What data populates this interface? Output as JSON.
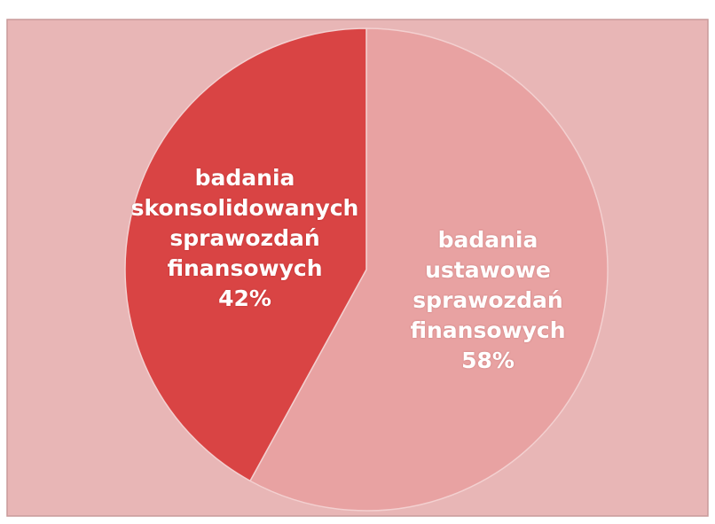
{
  "chart_data": {
    "type": "pie",
    "categories": [
      "badania ustawowe sprawozdań finansowych",
      "badania skonsolidowanych sprawozdań finansowych"
    ],
    "values": [
      58,
      42
    ],
    "value_labels": [
      "58%",
      "42%"
    ],
    "colors": [
      "#e8a2a2",
      "#d94444"
    ]
  }
}
